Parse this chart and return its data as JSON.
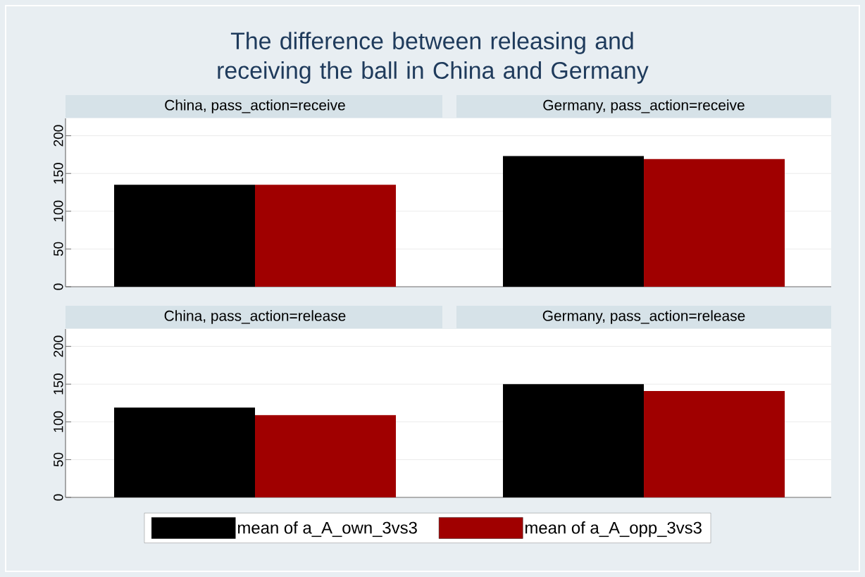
{
  "chart_data": [
    {
      "type": "bar",
      "annotations": [
        "The difference between releasing and receiving the ball in China and Germany"
      ],
      "categories": [
        "China, pass_action=receive",
        "Germany, pass_action=receive"
      ],
      "series": [
        {
          "color": "#000000",
          "values": [
            135,
            173
          ]
        },
        {
          "color": "#a00000",
          "values": [
            135,
            169
          ]
        }
      ],
      "ylim": [
        0,
        223
      ],
      "yticks": [
        0,
        50,
        100,
        150,
        200
      ],
      "grid": "y"
    },
    {
      "type": "bar",
      "categories": [
        "China, pass_action=release",
        "Germany, pass_action=release"
      ],
      "series": [
        {
          "name": "mean of a_A_own_3vs3",
          "color": "#000000",
          "values": [
            119,
            150
          ]
        },
        {
          "name": "mean of a_A_opp_3vs3",
          "color": "#a00000",
          "values": [
            109,
            141
          ]
        }
      ],
      "ylim": [
        0,
        223
      ],
      "yticks": [
        0,
        50,
        100,
        150,
        200
      ],
      "grid": "y",
      "legend": "bottom"
    }
  ]
}
